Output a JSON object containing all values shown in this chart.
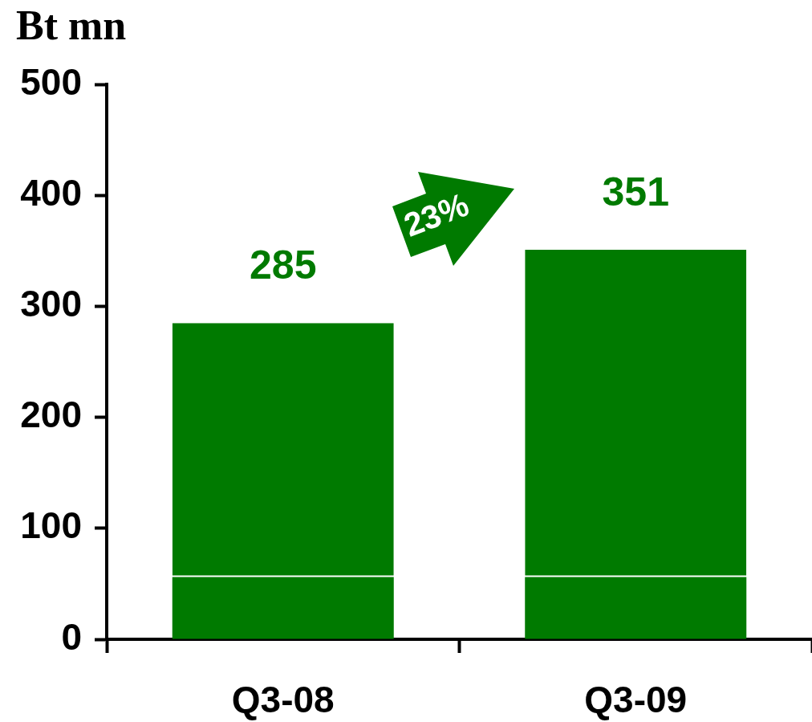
{
  "chart_data": {
    "type": "bar",
    "ylabel": "Bt mn",
    "categories": [
      "Q3-08",
      "Q3-09"
    ],
    "series": [
      {
        "color": "#007a00",
        "values": [
          56,
          56
        ]
      },
      {
        "color": "#007a00",
        "values": [
          229,
          295
        ]
      }
    ],
    "stacked": true,
    "totals": [
      "285",
      "351"
    ],
    "ylim": [
      0,
      500
    ],
    "yticks": [
      0,
      100,
      200,
      300,
      400,
      500
    ],
    "annotations": [
      "23%"
    ]
  }
}
